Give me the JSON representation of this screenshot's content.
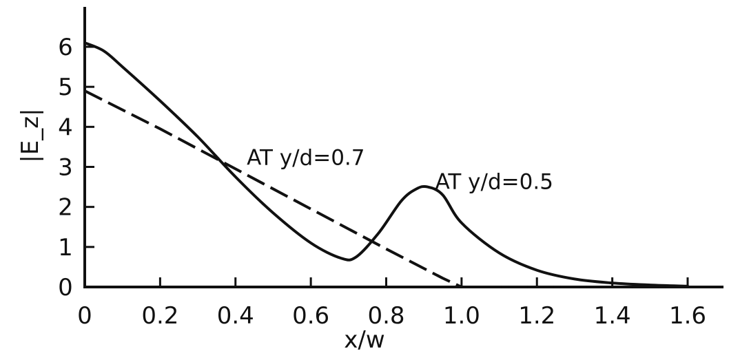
{
  "chart_data": {
    "type": "line",
    "title": "",
    "xlabel": "x/w",
    "ylabel": "|E_z|",
    "xlim": [
      0,
      1.6
    ],
    "ylim": [
      0,
      6
    ],
    "grid": false,
    "x_ticks": [
      "0",
      "0.2",
      "0.4",
      "0.6",
      "0.8",
      "1.0",
      "1.2",
      "1.4",
      "1.6"
    ],
    "y_ticks": [
      "0",
      "1",
      "2",
      "3",
      "4",
      "5",
      "6"
    ],
    "series": [
      {
        "name": "AT y/d=0.5",
        "style": "solid",
        "x": [
          0,
          0.05,
          0.1,
          0.2,
          0.3,
          0.4,
          0.5,
          0.6,
          0.68,
          0.72,
          0.78,
          0.84,
          0.88,
          0.91,
          0.95,
          1.0,
          1.1,
          1.2,
          1.3,
          1.4,
          1.5,
          1.6
        ],
        "y": [
          6.1,
          5.9,
          5.5,
          4.65,
          3.75,
          2.75,
          1.85,
          1.1,
          0.72,
          0.75,
          1.35,
          2.15,
          2.45,
          2.5,
          2.3,
          1.6,
          0.85,
          0.42,
          0.2,
          0.1,
          0.05,
          0.02
        ]
      },
      {
        "name": "AT y/d=0.7",
        "style": "dashed",
        "x": [
          0,
          0.2,
          0.4,
          0.6,
          0.8,
          0.95,
          1.0,
          1.2,
          1.4,
          1.6
        ],
        "y": [
          4.9,
          3.95,
          2.95,
          1.95,
          0.95,
          0.22,
          0.0,
          0.0,
          0.0,
          0.0
        ]
      }
    ],
    "annotations": [
      {
        "text": "AT y/d=0.7",
        "series": 1,
        "x": 0.43,
        "y": 3.05
      },
      {
        "text": "AT y/d=0.5",
        "series": 0,
        "x": 0.93,
        "y": 2.45
      }
    ]
  }
}
